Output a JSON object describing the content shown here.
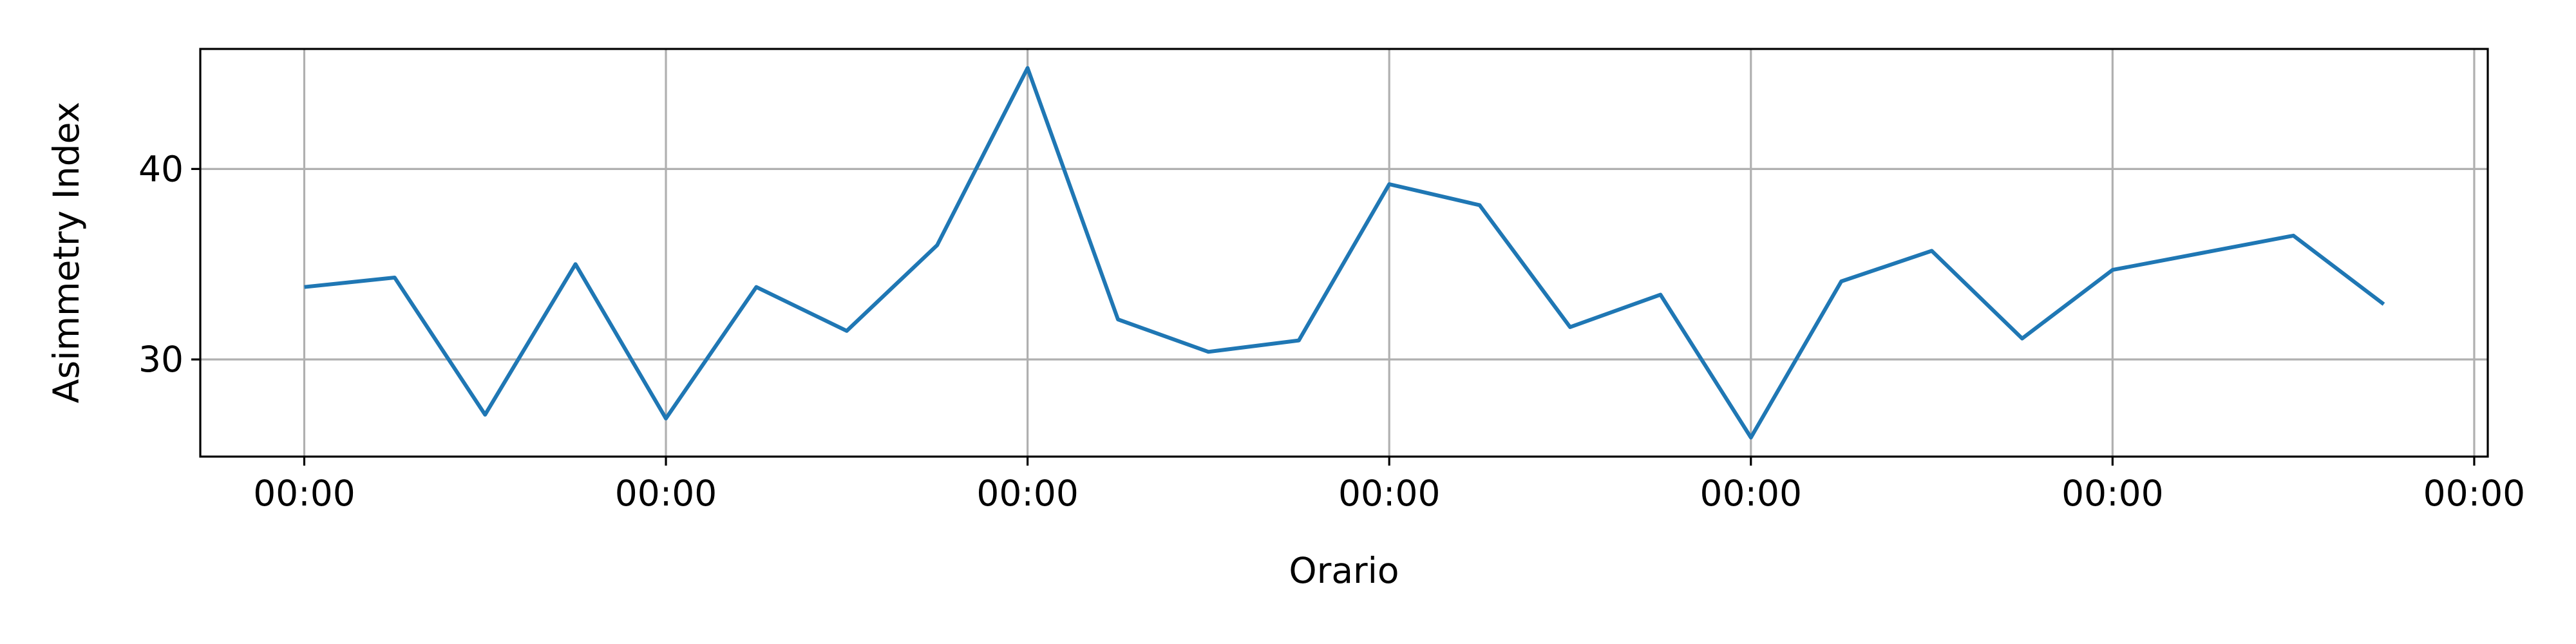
{
  "chart_data": {
    "type": "line",
    "title": "",
    "xlabel": "Orario",
    "ylabel": "Asimmetry Index",
    "x": [
      0,
      1,
      2,
      3,
      4,
      5,
      6,
      7,
      8,
      9,
      10,
      11,
      12,
      13,
      14,
      15,
      16,
      17,
      18,
      19,
      20,
      21,
      22,
      23,
      24
    ],
    "xlim": [
      -1.15,
      24.15
    ],
    "x_ticks": [
      0,
      4,
      8,
      12,
      16,
      20,
      24
    ],
    "x_tick_labels": [
      "00:00",
      "00:00",
      "00:00",
      "00:00",
      "00:00",
      "00:00",
      "00:00"
    ],
    "series": [
      {
        "values": [
          33.8,
          34.3,
          27.1,
          35.0,
          26.9,
          33.8,
          31.5,
          36.0,
          45.3,
          32.1,
          30.4,
          31.0,
          39.2,
          38.1,
          31.7,
          33.4,
          25.9,
          34.1,
          35.7,
          31.1,
          34.7,
          35.6,
          36.5,
          32.9,
          null
        ],
        "color": "#1f77b4"
      }
    ],
    "ylim": [
      24.9,
      46.3
    ],
    "y_ticks": [
      30,
      40
    ],
    "y_tick_labels": [
      "30",
      "40"
    ],
    "grid": true,
    "legend": "none"
  }
}
